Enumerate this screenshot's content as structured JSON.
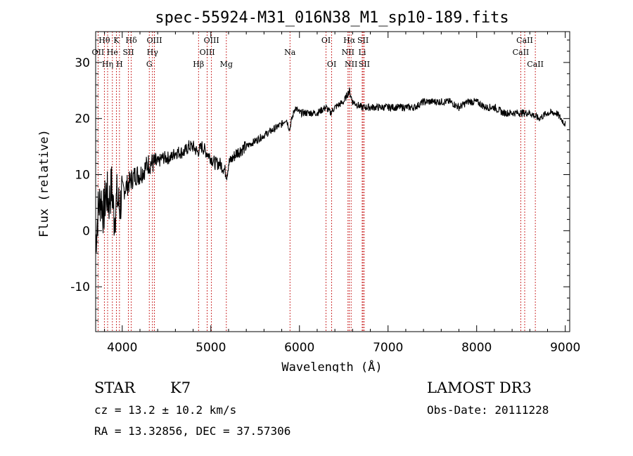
{
  "chart_data": {
    "type": "line",
    "title": "spec-55924-M31_016N38_M1_sp10-189.fits",
    "xlabel": "Wavelength (Å)",
    "ylabel": "Flux (relative)",
    "xlim": [
      3700,
      9050
    ],
    "ylim": [
      -18,
      35.5
    ],
    "xticks": [
      4000,
      5000,
      6000,
      7000,
      8000,
      9000
    ],
    "yticks": [
      -10,
      0,
      10,
      20,
      30
    ],
    "series": [
      {
        "name": "flux",
        "x": [
          3700,
          3730,
          3760,
          3790,
          3820,
          3850,
          3880,
          3910,
          3940,
          3970,
          4000,
          4050,
          4100,
          4150,
          4200,
          4250,
          4300,
          4350,
          4400,
          4450,
          4500,
          4550,
          4600,
          4650,
          4700,
          4750,
          4800,
          4850,
          4900,
          4950,
          5000,
          5050,
          5100,
          5150,
          5180,
          5200,
          5250,
          5300,
          5400,
          5500,
          5600,
          5700,
          5800,
          5850,
          5890,
          5900,
          5950,
          6000,
          6100,
          6200,
          6300,
          6350,
          6400,
          6500,
          6563,
          6600,
          6700,
          6800,
          6900,
          7000,
          7100,
          7200,
          7300,
          7400,
          7500,
          7600,
          7700,
          7800,
          7900,
          8000,
          8100,
          8200,
          8300,
          8400,
          8500,
          8600,
          8700,
          8800,
          8900,
          8950,
          9000
        ],
        "y": [
          -2,
          4,
          6,
          3,
          7,
          5,
          8,
          2,
          6,
          4,
          7,
          8,
          9,
          10,
          10,
          11,
          12,
          12,
          12,
          13,
          13,
          13,
          14,
          14,
          14,
          15,
          15,
          14,
          15,
          14,
          13,
          12,
          12,
          11,
          10,
          12,
          13,
          14,
          15,
          16,
          17,
          18,
          19,
          20,
          18,
          19,
          22,
          21,
          21,
          21,
          22,
          21,
          22,
          23,
          25,
          23,
          22,
          22,
          22,
          22,
          22,
          22,
          22,
          23,
          23,
          23,
          23,
          22,
          23,
          23,
          22,
          22,
          21,
          21,
          21,
          21,
          20,
          21,
          21,
          20,
          19
        ]
      }
    ],
    "spectral_lines": [
      {
        "label": "Hθ",
        "wl": 3798,
        "row": 0
      },
      {
        "label": "OII",
        "wl": 3727,
        "row": 1
      },
      {
        "label": "Hη",
        "wl": 3835,
        "row": 2
      },
      {
        "label": "K",
        "wl": 3934,
        "row": 0
      },
      {
        "label": "He",
        "wl": 3889,
        "row": 1
      },
      {
        "label": "H",
        "wl": 3969,
        "row": 2
      },
      {
        "label": "Hδ",
        "wl": 4102,
        "row": 0
      },
      {
        "label": "SII",
        "wl": 4070,
        "row": 1
      },
      {
        "label": "OIII",
        "wl": 4363,
        "row": 0
      },
      {
        "label": "Hγ",
        "wl": 4341,
        "row": 1
      },
      {
        "label": "G",
        "wl": 4305,
        "row": 2
      },
      {
        "label": "OIII",
        "wl": 5007,
        "row": 0
      },
      {
        "label": "OIII",
        "wl": 4959,
        "row": 1
      },
      {
        "label": "Hβ",
        "wl": 4861,
        "row": 2
      },
      {
        "label": "Mg",
        "wl": 5175,
        "row": 2
      },
      {
        "label": "Na",
        "wl": 5893,
        "row": 1
      },
      {
        "label": "OI",
        "wl": 6300,
        "row": 0
      },
      {
        "label": "OI",
        "wl": 6364,
        "row": 2
      },
      {
        "label": "Hα",
        "wl": 6563,
        "row": 0
      },
      {
        "label": "SII",
        "wl": 6717,
        "row": 0
      },
      {
        "label": "NII",
        "wl": 6548,
        "row": 1
      },
      {
        "label": "Li",
        "wl": 6708,
        "row": 1
      },
      {
        "label": "NII",
        "wl": 6583,
        "row": 2
      },
      {
        "label": "SII",
        "wl": 6731,
        "row": 2
      },
      {
        "label": "CaII",
        "wl": 8542,
        "row": 0
      },
      {
        "label": "CaII",
        "wl": 8498,
        "row": 1
      },
      {
        "label": "CaII",
        "wl": 8662,
        "row": 2
      }
    ]
  },
  "info": {
    "class": "STAR",
    "subclass": "K7",
    "survey": "LAMOST DR3",
    "cz": "cz = 13.2 ± 10.2 km/s",
    "obs_date": "Obs-Date: 20111228",
    "coords": "RA =  13.32856, DEC =  37.57306"
  }
}
